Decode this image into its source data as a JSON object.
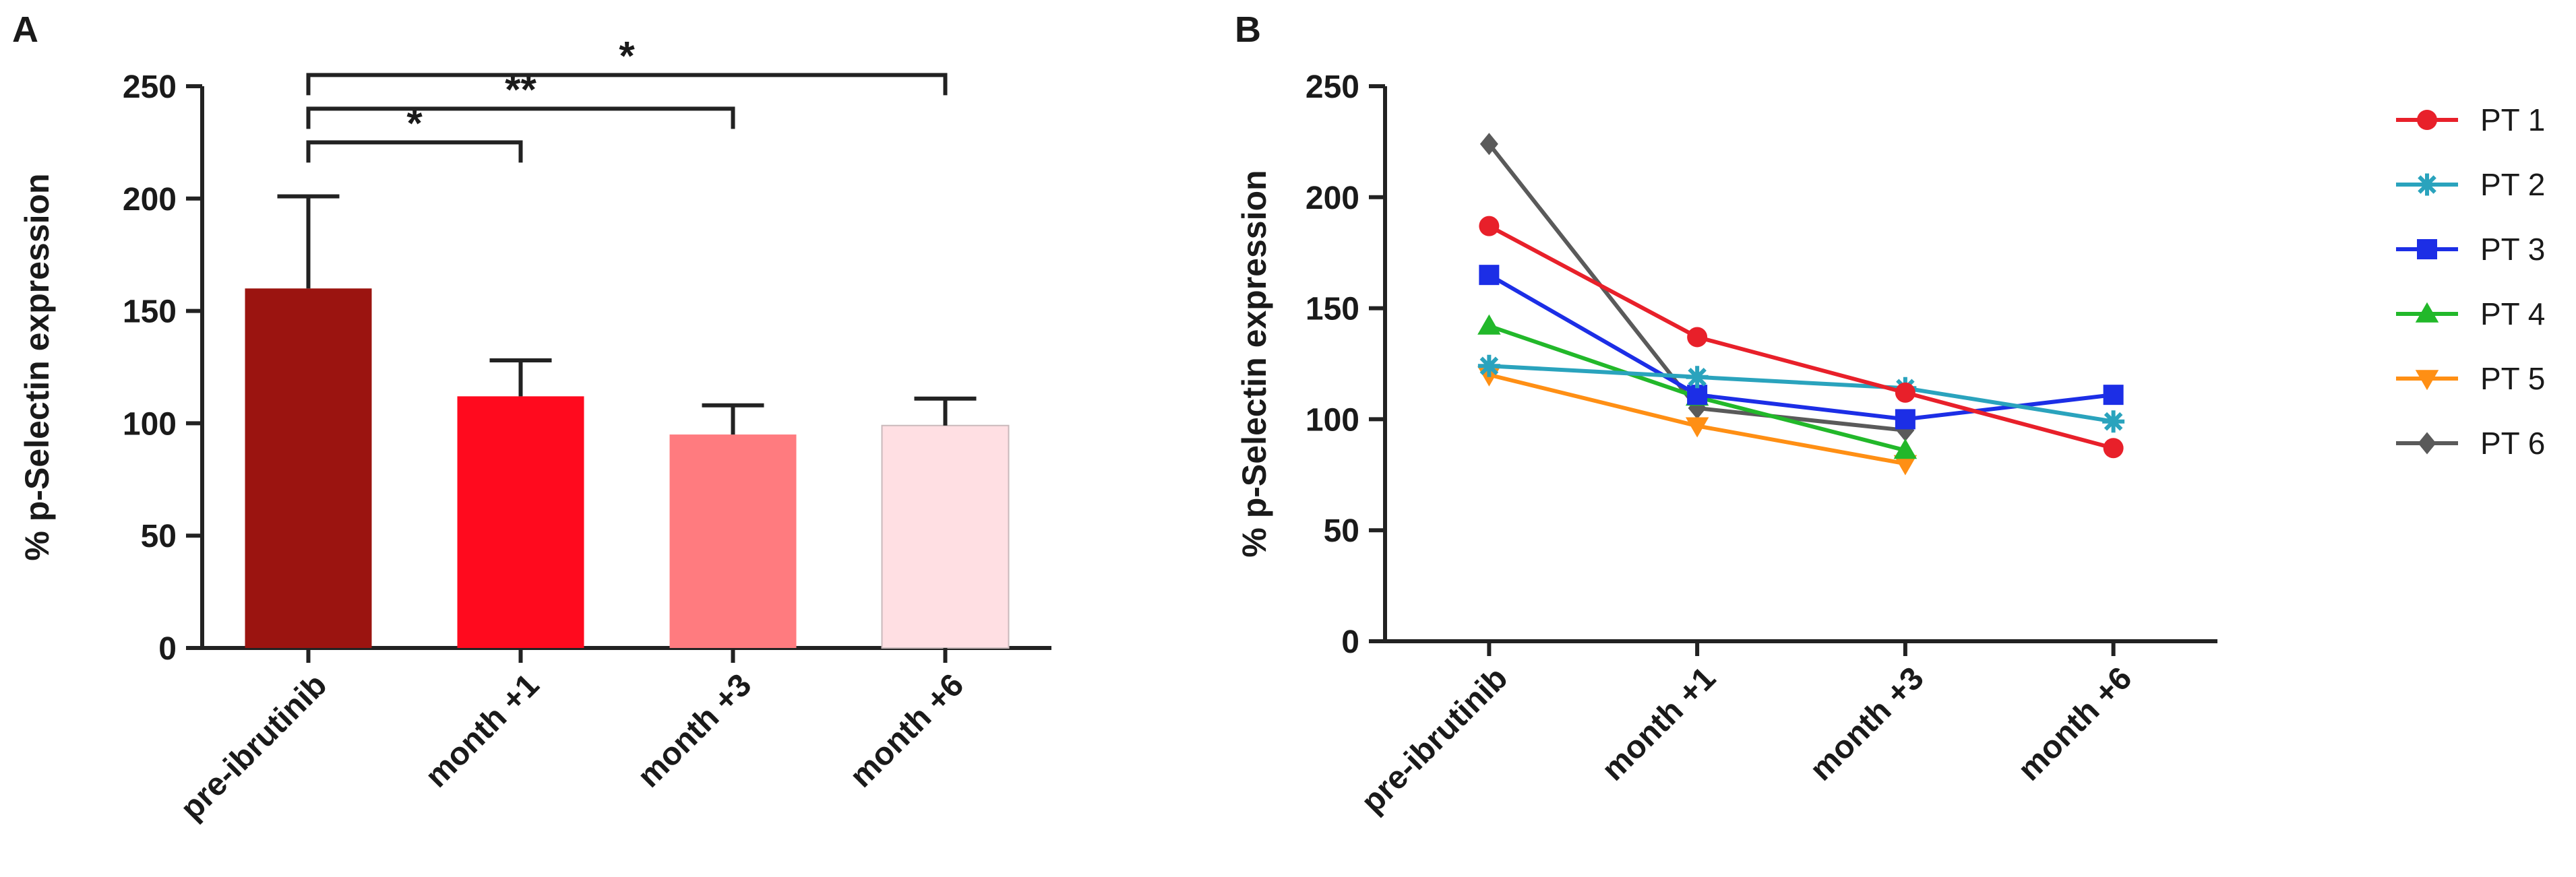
{
  "figure": {
    "panel_a_label": "A",
    "panel_b_label": "B"
  },
  "chart_data": [
    {
      "type": "bar",
      "panel": "A",
      "categories": [
        "pre-ibrutinib",
        "month +1",
        "month +3",
        "month +6"
      ],
      "values": [
        160,
        112,
        95,
        99
      ],
      "errors": [
        41,
        16,
        13,
        12
      ],
      "bar_colors": [
        "#9b1410",
        "#ff0a1e",
        "#ff7b7f",
        "#ffdfe3"
      ],
      "ylabel": "% p-Selectin expression",
      "xlabel": "",
      "ylim": [
        0,
        250
      ],
      "yticks": [
        0,
        50,
        100,
        150,
        200,
        250
      ],
      "significance": [
        {
          "from": "pre-ibrutinib",
          "to": "month +1",
          "label": "*",
          "y": 225
        },
        {
          "from": "pre-ibrutinib",
          "to": "month +3",
          "label": "**",
          "y": 240
        },
        {
          "from": "pre-ibrutinib",
          "to": "month +6",
          "label": "*",
          "y": 255
        }
      ]
    },
    {
      "type": "line",
      "panel": "B",
      "categories": [
        "pre-ibrutinib",
        "month +1",
        "month +3",
        "month +6"
      ],
      "ylabel": "% p-Selectin expression",
      "xlabel": "",
      "ylim": [
        0,
        250
      ],
      "yticks": [
        0,
        50,
        100,
        150,
        200,
        250
      ],
      "legend_position": "right",
      "series": [
        {
          "name": "PT 1",
          "color": "#e8202a",
          "marker": "circle",
          "values": [
            187,
            137,
            112,
            87
          ]
        },
        {
          "name": "PT 2",
          "color": "#2aa3bd",
          "marker": "asterisk",
          "values": [
            124,
            119,
            114,
            99
          ]
        },
        {
          "name": "PT 3",
          "color": "#1c2ee6",
          "marker": "square",
          "values": [
            165,
            111,
            100,
            111
          ]
        },
        {
          "name": "PT 4",
          "color": "#22b82a",
          "marker": "triangle-up",
          "values": [
            142,
            110,
            86,
            null
          ]
        },
        {
          "name": "PT 5",
          "color": "#ff8f14",
          "marker": "triangle-down",
          "values": [
            120,
            97,
            80,
            null
          ]
        },
        {
          "name": "PT 6",
          "color": "#5a5a5a",
          "marker": "diamond",
          "values": [
            224,
            105,
            95,
            null
          ]
        }
      ]
    }
  ]
}
